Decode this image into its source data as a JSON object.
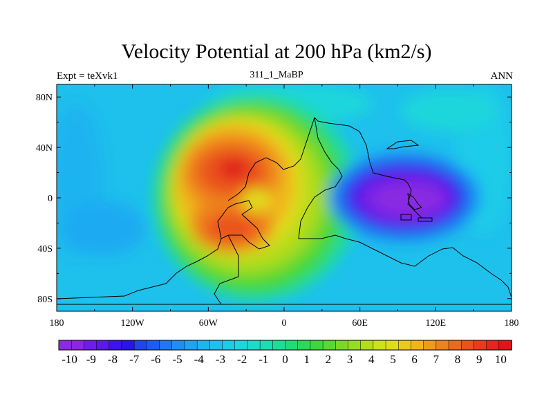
{
  "title": "Velocity Potential at 200 hPa (km2/s)",
  "subtitle_left": "Expt = teXvk1",
  "subtitle_center": "311_1_MaBP",
  "subtitle_right": "ANN",
  "lon_ticks": [
    "180",
    "120W",
    "60W",
    "0",
    "60E",
    "120E",
    "180"
  ],
  "lat_ticks": [
    "80N",
    "40N",
    "0",
    "40S",
    "80S"
  ],
  "chart_data": {
    "type": "heatmap",
    "title": "Velocity Potential at 200 hPa (km2/s)",
    "variable": "Velocity Potential at 200 hPa",
    "units": "km2/s",
    "experiment": "teXvk1",
    "period": "ANN",
    "xlim": [
      -180,
      180
    ],
    "ylim": [
      -90,
      90
    ],
    "field_features": [
      {
        "name": "maximum",
        "lon": -40,
        "lat": 20,
        "value": 10
      },
      {
        "name": "secondary maximum",
        "lon": -40,
        "lat": -25,
        "value": 9
      },
      {
        "name": "minimum",
        "lon": 100,
        "lat": 0,
        "value": -10
      }
    ],
    "colorbar": {
      "labels": [
        "-10",
        "-9",
        "-8",
        "-7",
        "-6",
        "-5",
        "-4",
        "-3",
        "-2",
        "-1",
        "0",
        "1",
        "2",
        "3",
        "4",
        "5",
        "6",
        "7",
        "8",
        "9",
        "10"
      ],
      "range": [
        -10.5,
        10.5
      ],
      "colors": [
        "#8a2be2",
        "#8c26e2",
        "#6e1ce8",
        "#5a1ae8",
        "#3c14ea",
        "#2a14e8",
        "#1e46ea",
        "#1c5cf0",
        "#1e78f2",
        "#1e8ef4",
        "#1ea2f2",
        "#1eb4f0",
        "#1ec0ec",
        "#1ecce8",
        "#1ed6dc",
        "#1edac8",
        "#1edcb4",
        "#1edc96",
        "#20dc78",
        "#2ad85a",
        "#3cd83c",
        "#5ad830",
        "#7ad828",
        "#96dc20",
        "#b2dc1c",
        "#cce01c",
        "#e0dc1c",
        "#ecc81c",
        "#f0b41c",
        "#f09a1c",
        "#ee821c",
        "#ec6a1c",
        "#ea521c",
        "#e83a1c",
        "#e6261c",
        "#e0141c"
      ]
    }
  }
}
